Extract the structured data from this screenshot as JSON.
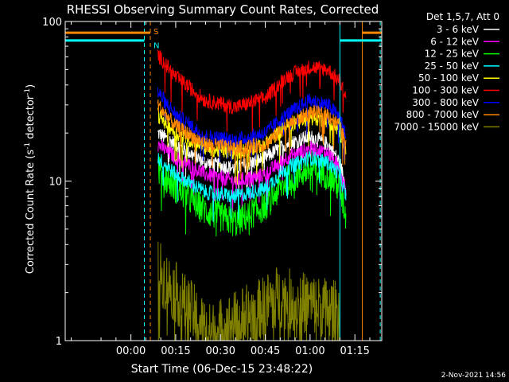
{
  "chart_data": {
    "type": "line",
    "title": "RHESSI Observing Summary Count Rates, Corrected",
    "xlabel": "Start Time (06-Dec-15 23:48:22)",
    "ylabel_main": "Corrected Count Rate (s",
    "ylabel_sup1": "-1",
    "ylabel_mid": " detector",
    "ylabel_sup2": "-1",
    "ylabel_end": ")",
    "y_scale": "log",
    "ylim": [
      1,
      100
    ],
    "xlim_minutes": [
      -22,
      84
    ],
    "x_ticks": [
      {
        "minutes": 0,
        "label": "00:00"
      },
      {
        "minutes": 15,
        "label": "00:15"
      },
      {
        "minutes": 30,
        "label": "00:30"
      },
      {
        "minutes": 45,
        "label": "00:45"
      },
      {
        "minutes": 60,
        "label": "01:00"
      },
      {
        "minutes": 75,
        "label": "01:15"
      }
    ],
    "y_ticks": [
      {
        "value": 1,
        "label": "1"
      },
      {
        "value": 10,
        "label": "10"
      },
      {
        "value": 100,
        "label": "100"
      }
    ],
    "legend_title": "Det 1,5,7, Att 0",
    "legend_position": "right",
    "series": [
      {
        "name": "3 - 6 keV",
        "color": "#ffffff",
        "x": [
          9,
          15,
          25,
          35,
          45,
          52,
          60,
          66,
          70,
          72
        ],
        "y": [
          20,
          17,
          13,
          12,
          14,
          17,
          19,
          17,
          13,
          9
        ]
      },
      {
        "name": "6 - 12 keV",
        "color": "#ff00ff",
        "x": [
          9,
          15,
          25,
          35,
          45,
          52,
          60,
          66,
          70,
          72
        ],
        "y": [
          17,
          14,
          11,
          10,
          11,
          14,
          16,
          15,
          12,
          9
        ]
      },
      {
        "name": "12 - 25 keV",
        "color": "#00ff00",
        "x": [
          9,
          15,
          25,
          35,
          45,
          52,
          60,
          66,
          70,
          72
        ],
        "y": [
          12,
          9,
          6.5,
          5.5,
          7,
          10,
          12,
          11,
          9,
          6
        ]
      },
      {
        "name": "25 - 50 keV",
        "color": "#00ffff",
        "x": [
          9,
          15,
          25,
          35,
          45,
          52,
          60,
          66,
          70,
          72
        ],
        "y": [
          14,
          11,
          8.5,
          8,
          9,
          12,
          14,
          13,
          11,
          8
        ]
      },
      {
        "name": "50 - 100 keV",
        "color": "#ffff00",
        "x": [
          9,
          15,
          25,
          35,
          45,
          52,
          60,
          66,
          70,
          72
        ],
        "y": [
          26,
          20,
          16,
          15,
          17,
          22,
          25,
          24,
          20,
          15
        ]
      },
      {
        "name": "100 - 300 keV",
        "color": "#ff0000",
        "x": [
          9,
          15,
          25,
          35,
          45,
          52,
          60,
          66,
          70,
          72
        ],
        "y": [
          62,
          45,
          32,
          29,
          33,
          45,
          52,
          50,
          42,
          34
        ]
      },
      {
        "name": "300 - 800 keV",
        "color": "#0000ff",
        "x": [
          9,
          15,
          25,
          35,
          45,
          52,
          60,
          66,
          70,
          72
        ],
        "y": [
          36,
          26,
          19,
          18,
          20,
          26,
          32,
          30,
          25,
          19
        ]
      },
      {
        "name": "800 - 7000 keV",
        "color": "#ff8800",
        "x": [
          9,
          15,
          25,
          35,
          45,
          52,
          60,
          66,
          70,
          72
        ],
        "y": [
          30,
          22,
          17,
          16,
          17,
          22,
          27,
          26,
          22,
          17
        ]
      },
      {
        "name": "7000 - 15000 keV",
        "color": "#808000",
        "x": [
          9,
          12,
          15,
          18,
          22,
          26,
          44,
          48,
          54,
          60,
          66,
          70
        ],
        "y": [
          2.8,
          2.3,
          2.0,
          1.7,
          1.4,
          1.1,
          1.6,
          1.9,
          1.8,
          1.7,
          1.6,
          1.5
        ]
      }
    ],
    "markers": [
      {
        "label": "S",
        "x_minutes": 6.5,
        "color": "#ff8800"
      },
      {
        "label": "N",
        "x_minutes": 6.5,
        "color": "#00ffff"
      }
    ],
    "vertical_lines": [
      {
        "x_minutes": -22,
        "color": "#00ffff",
        "style": "solid"
      },
      {
        "x_minutes": 4.5,
        "color": "#00ffff",
        "style": "dashed"
      },
      {
        "x_minutes": 6.5,
        "color": "#ff8800",
        "style": "dashed"
      },
      {
        "x_minutes": 70,
        "color": "#00ffff",
        "style": "solid"
      },
      {
        "x_minutes": 77.5,
        "color": "#ff8800",
        "style": "solid"
      },
      {
        "x_minutes": 83.5,
        "color": "#00ffff",
        "style": "dashed"
      }
    ],
    "segment_bars": [
      {
        "color": "#ff8800",
        "x_start": -22,
        "x_end": 6.5,
        "y": 85
      },
      {
        "color": "#00ffff",
        "x_start": -22,
        "x_end": 4.5,
        "y": 76
      },
      {
        "color": "#ff8800",
        "x_start": 77.5,
        "x_end": 84,
        "y": 85
      },
      {
        "color": "#00ffff",
        "x_start": 70,
        "x_end": 84,
        "y": 76
      }
    ]
  },
  "footer": {
    "timestamp": "2-Nov-2021 14:56"
  }
}
